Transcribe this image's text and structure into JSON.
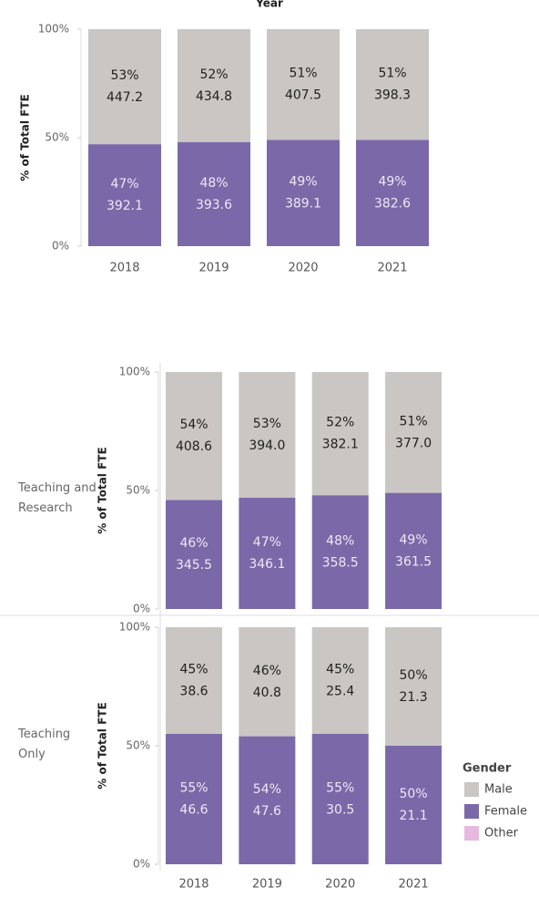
{
  "chart_data": [
    {
      "type": "stacked_bar",
      "x_title": "Year",
      "y_label": "% of Total FTE",
      "x_labels": true,
      "categories": [
        "2018",
        "2019",
        "2020",
        "2021"
      ],
      "ylim": [
        0,
        100
      ],
      "yticks": [
        {
          "value": 0,
          "label": "0%"
        },
        {
          "value": 50,
          "label": "50%"
        },
        {
          "value": 100,
          "label": "100%"
        }
      ],
      "series": [
        {
          "name": "Female",
          "color": "#7b68a8",
          "values": [
            47,
            48,
            49,
            49
          ],
          "value_labels": [
            "47%",
            "48%",
            "49%",
            "49%"
          ],
          "fte_labels": [
            "392.1",
            "393.6",
            "389.1",
            "382.6"
          ]
        },
        {
          "name": "Male",
          "color": "#c9c6c3",
          "values": [
            53,
            52,
            51,
            51
          ],
          "value_labels": [
            "53%",
            "52%",
            "51%",
            "51%"
          ],
          "fte_labels": [
            "447.2",
            "434.8",
            "407.5",
            "398.3"
          ]
        }
      ]
    },
    {
      "type": "stacked_bar",
      "row_label": "Teaching and Research",
      "y_label": "% of Total FTE",
      "x_labels": false,
      "categories": [
        "2018",
        "2019",
        "2020",
        "2021"
      ],
      "ylim": [
        0,
        100
      ],
      "yticks": [
        {
          "value": 0,
          "label": "0%"
        },
        {
          "value": 50,
          "label": "50%"
        },
        {
          "value": 100,
          "label": "100%"
        }
      ],
      "series": [
        {
          "name": "Female",
          "color": "#7b68a8",
          "values": [
            46,
            47,
            48,
            49
          ],
          "value_labels": [
            "46%",
            "47%",
            "48%",
            "49%"
          ],
          "fte_labels": [
            "345.5",
            "346.1",
            "358.5",
            "361.5"
          ]
        },
        {
          "name": "Male",
          "color": "#c9c6c3",
          "values": [
            54,
            53,
            52,
            51
          ],
          "value_labels": [
            "54%",
            "53%",
            "52%",
            "51%"
          ],
          "fte_labels": [
            "408.6",
            "394.0",
            "382.1",
            "377.0"
          ]
        }
      ]
    },
    {
      "type": "stacked_bar",
      "row_label": "Teaching Only",
      "y_label": "% of Total FTE",
      "x_labels": true,
      "categories": [
        "2018",
        "2019",
        "2020",
        "2021"
      ],
      "ylim": [
        0,
        100
      ],
      "yticks": [
        {
          "value": 0,
          "label": "0%"
        },
        {
          "value": 50,
          "label": "50%"
        },
        {
          "value": 100,
          "label": "100%"
        }
      ],
      "legend_title": "Gender",
      "series": [
        {
          "name": "Female",
          "color": "#7b68a8",
          "values": [
            55,
            54,
            55,
            50
          ],
          "value_labels": [
            "55%",
            "54%",
            "55%",
            "50%"
          ],
          "fte_labels": [
            "46.6",
            "47.6",
            "30.5",
            "21.1"
          ]
        },
        {
          "name": "Male",
          "color": "#c9c6c3",
          "values": [
            45,
            46,
            45,
            50
          ],
          "value_labels": [
            "45%",
            "46%",
            "45%",
            "50%"
          ],
          "fte_labels": [
            "38.6",
            "40.8",
            "25.4",
            "21.3"
          ]
        },
        {
          "name": "Other",
          "color": "#e6b9df",
          "values": [
            0,
            0,
            0,
            0
          ]
        }
      ]
    }
  ]
}
